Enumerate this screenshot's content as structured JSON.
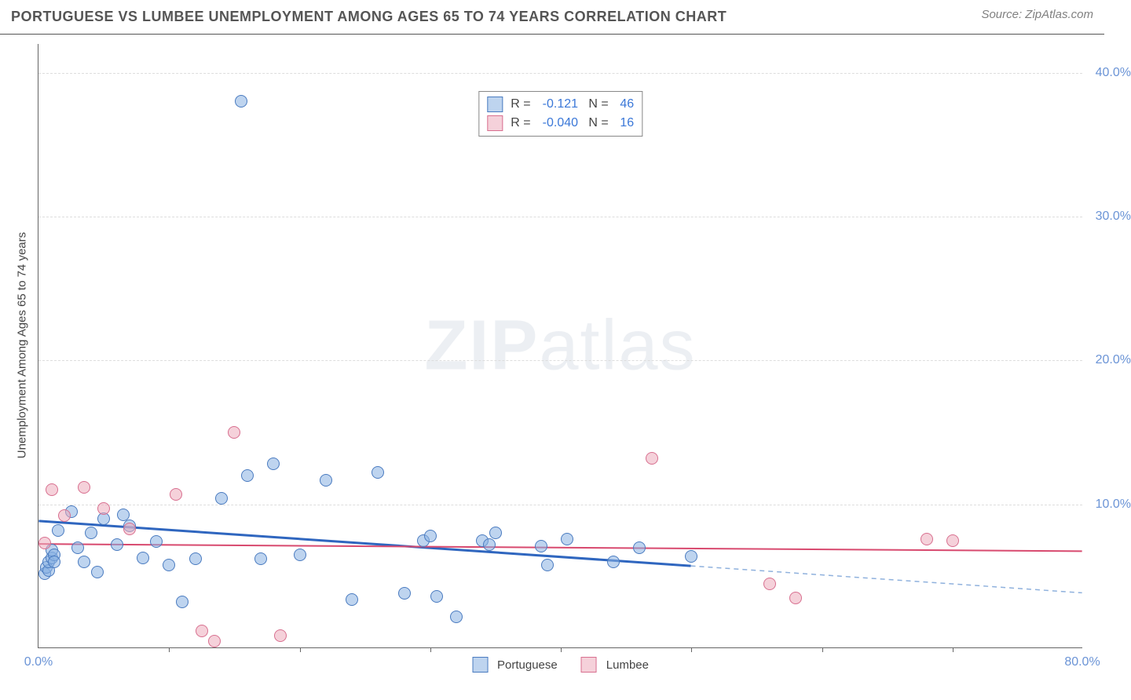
{
  "chart": {
    "title": "PORTUGUESE VS LUMBEE UNEMPLOYMENT AMONG AGES 65 TO 74 YEARS CORRELATION CHART",
    "source": "Source: ZipAtlas.com",
    "watermark": "ZIPatlas",
    "type": "scatter",
    "background_color": "#ffffff",
    "grid_color": "#dddddd",
    "grid_style": "dashed",
    "y_axis": {
      "label": "Unemployment Among Ages 65 to 74 years",
      "min": 0,
      "max": 42,
      "ticks": [
        10,
        20,
        30,
        40
      ],
      "tick_labels": [
        "10.0%",
        "20.0%",
        "30.0%",
        "40.0%"
      ],
      "tick_color": "#6b94d6",
      "label_fontsize": 15
    },
    "x_axis": {
      "min": 0,
      "max": 80,
      "tick_marks": [
        10,
        20,
        30,
        40,
        50,
        60,
        70
      ],
      "min_label": "0.0%",
      "max_label": "80.0%",
      "tick_color": "#6b94d6"
    },
    "series": [
      {
        "name": "Portuguese",
        "color": "#89b0e2",
        "border": "#4a7bc0",
        "marker_size": 16,
        "stats": {
          "r": "-0.121",
          "n": "46"
        },
        "trend": {
          "y_at_x0": 8.8,
          "y_at_x80": 3.8,
          "solid_end_x": 50,
          "solid_color": "#2f66bf",
          "solid_width": 3,
          "dashed_color": "#8fb1dd",
          "dashed_width": 1.5
        },
        "points": [
          [
            0.5,
            5.2
          ],
          [
            0.6,
            5.6
          ],
          [
            0.8,
            5.4
          ],
          [
            0.8,
            6.0
          ],
          [
            1.0,
            6.3
          ],
          [
            1.0,
            6.8
          ],
          [
            1.2,
            6.5
          ],
          [
            1.2,
            6.0
          ],
          [
            1.5,
            8.2
          ],
          [
            2.5,
            9.5
          ],
          [
            3.0,
            7.0
          ],
          [
            3.5,
            6.0
          ],
          [
            4.0,
            8.0
          ],
          [
            4.5,
            5.3
          ],
          [
            5.0,
            9.0
          ],
          [
            6.0,
            7.2
          ],
          [
            6.5,
            9.3
          ],
          [
            7.0,
            8.5
          ],
          [
            8.0,
            6.3
          ],
          [
            9.0,
            7.4
          ],
          [
            10.0,
            5.8
          ],
          [
            11.0,
            3.2
          ],
          [
            12.0,
            6.2
          ],
          [
            14.0,
            10.4
          ],
          [
            15.5,
            38.0
          ],
          [
            16.0,
            12.0
          ],
          [
            17.0,
            6.2
          ],
          [
            18.0,
            12.8
          ],
          [
            20.0,
            6.5
          ],
          [
            22.0,
            11.7
          ],
          [
            24.0,
            3.4
          ],
          [
            26.0,
            12.2
          ],
          [
            28.0,
            3.8
          ],
          [
            29.5,
            7.5
          ],
          [
            30.0,
            7.8
          ],
          [
            30.5,
            3.6
          ],
          [
            32.0,
            2.2
          ],
          [
            34.0,
            7.5
          ],
          [
            34.5,
            7.2
          ],
          [
            35.0,
            8.0
          ],
          [
            38.5,
            7.1
          ],
          [
            39.0,
            5.8
          ],
          [
            40.5,
            7.6
          ],
          [
            44.0,
            6.0
          ],
          [
            46.0,
            7.0
          ],
          [
            50.0,
            6.4
          ]
        ]
      },
      {
        "name": "Lumbee",
        "color": "#ecacbc",
        "border": "#d86f8f",
        "marker_size": 16,
        "stats": {
          "r": "-0.040",
          "n": "16"
        },
        "trend": {
          "y_at_x0": 7.2,
          "y_at_x80": 6.7,
          "solid_end_x": 80,
          "solid_color": "#d84a6f",
          "solid_width": 2,
          "dashed_color": "#d84a6f",
          "dashed_width": 0
        },
        "points": [
          [
            0.5,
            7.3
          ],
          [
            1.0,
            11.0
          ],
          [
            2.0,
            9.2
          ],
          [
            3.5,
            11.2
          ],
          [
            5.0,
            9.7
          ],
          [
            7.0,
            8.3
          ],
          [
            10.5,
            10.7
          ],
          [
            12.5,
            1.2
          ],
          [
            13.5,
            0.5
          ],
          [
            15.0,
            15.0
          ],
          [
            18.5,
            0.9
          ],
          [
            47.0,
            13.2
          ],
          [
            56.0,
            4.5
          ],
          [
            58.0,
            3.5
          ],
          [
            68.0,
            7.6
          ],
          [
            70.0,
            7.5
          ]
        ]
      }
    ]
  }
}
